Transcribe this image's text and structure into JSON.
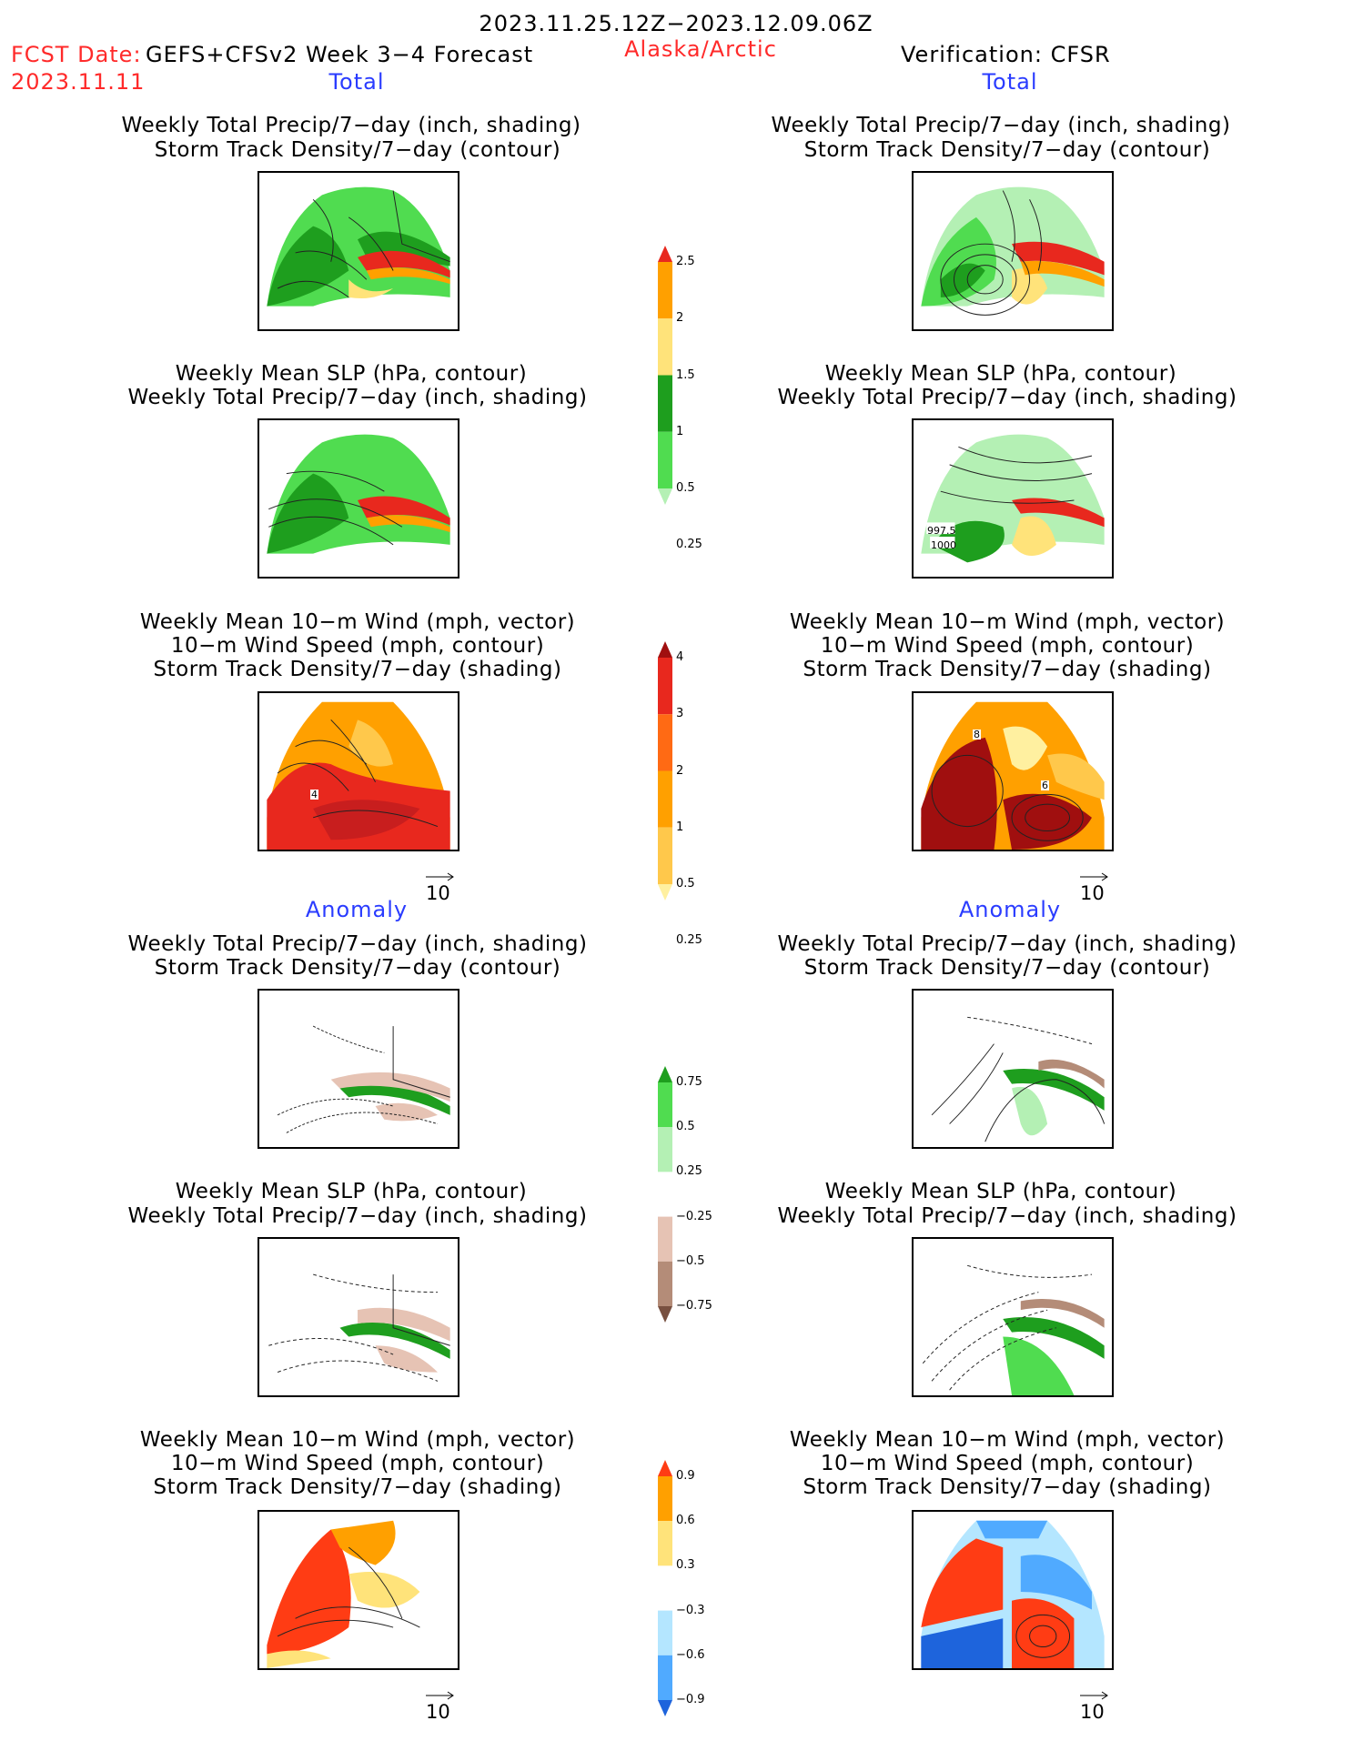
{
  "header": {
    "date_range": "2023.11.25.12Z−2023.12.09.06Z",
    "fcst_label": "FCST Date:",
    "model_label": "GEFS+CFSv2 Week 3−4 Forecast",
    "fcst_date": "2023.11.11",
    "region": "Alaska/Arctic",
    "verification": "Verification: CFSR"
  },
  "sections": {
    "total": "Total",
    "anomaly": "Anomaly"
  },
  "panels": {
    "precip_storm": {
      "line1": "Weekly Total Precip/7−day (inch, shading)",
      "line2": "Storm Track Density/7−day (contour)"
    },
    "slp_precip": {
      "line1": "Weekly Mean SLP (hPa, contour)",
      "line2": "Weekly Total Precip/7−day (inch, shading)"
    },
    "wind": {
      "line1": "Weekly Mean 10−m Wind (mph, vector)",
      "line2": "10−m Wind Speed (mph, contour)",
      "line3": "Storm Track Density/7−day (shading)"
    }
  },
  "vector_ref": "10",
  "map_labels": {
    "slp_997": "997.5",
    "slp_1000": "1000",
    "wind_left": "4",
    "wind_right_a": "8",
    "wind_right_b": "6"
  },
  "colorbars": {
    "precip_total": {
      "labels": [
        "2.5",
        "2",
        "1.5",
        "1",
        "0.5",
        "0.25"
      ],
      "colors": [
        "#e8281e",
        "#ffa000",
        "#ffe37a",
        "#1e9e1e",
        "#50dc50",
        "#b4f0b4"
      ]
    },
    "storm_total": {
      "labels": [
        "4",
        "3",
        "2",
        "1",
        "0.5",
        "0.25"
      ],
      "colors": [
        "#a00f0f",
        "#e8281e",
        "#ff6a14",
        "#ffa000",
        "#ffc84b",
        "#fff0a0"
      ]
    },
    "precip_anom": {
      "labels": [
        "0.75",
        "0.5",
        "0.25",
        "−0.25",
        "−0.5",
        "−0.75"
      ],
      "colors": [
        "#1e9e1e",
        "#50dc50",
        "#b4f0b4",
        "#ffffff",
        "#e6c3b4",
        "#b48c78",
        "#785040"
      ]
    },
    "storm_anom": {
      "labels": [
        "0.9",
        "0.6",
        "0.3",
        "−0.3",
        "−0.6",
        "−0.9"
      ],
      "colors": [
        "#ff3c14",
        "#ffa000",
        "#ffe37a",
        "#ffffff",
        "#b4e6ff",
        "#50aaff",
        "#1e64dc"
      ]
    }
  },
  "colors": {
    "header_red": "#ff2a2a",
    "section_blue": "#2a3cff"
  }
}
